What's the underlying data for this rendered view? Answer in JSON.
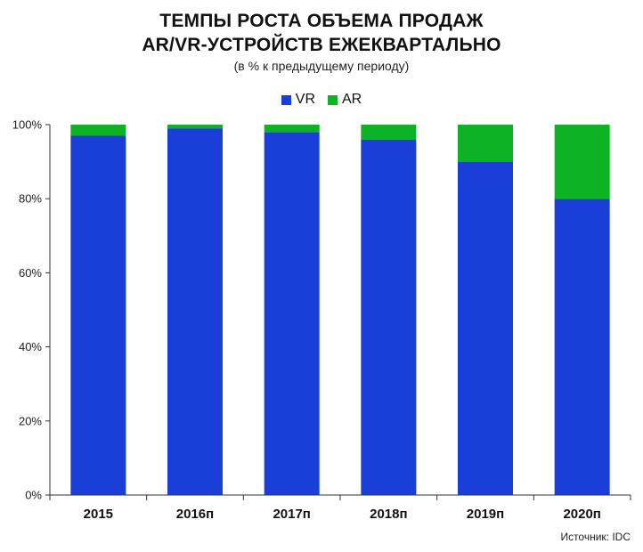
{
  "title_line1": "ТЕМПЫ РОСТА ОБЪЕМА ПРОДАЖ",
  "title_line2": "AR/VR-УСТРОЙСТВ ЕЖЕКВАРТАЛЬНО",
  "subtitle": "(в % к предыдущему периоду)",
  "source": "Источник: IDC",
  "colors": {
    "VR": "#1a3fd9",
    "AR": "#0db324",
    "axis": "#333333"
  },
  "chart_data": {
    "type": "bar",
    "stacked": true,
    "categories": [
      "2015",
      "2016п",
      "2017п",
      "2018п",
      "2019п",
      "2020п"
    ],
    "series": [
      {
        "name": "VR",
        "values": [
          97,
          99,
          98,
          96,
          90,
          80
        ]
      },
      {
        "name": "AR",
        "values": [
          3,
          1,
          2,
          4,
          10,
          20
        ]
      }
    ],
    "ylim": [
      0,
      100
    ],
    "yticks": [
      "0%",
      "20%",
      "40%",
      "60%",
      "80%",
      "100%"
    ],
    "legend_position": "top-center",
    "grid": false
  }
}
